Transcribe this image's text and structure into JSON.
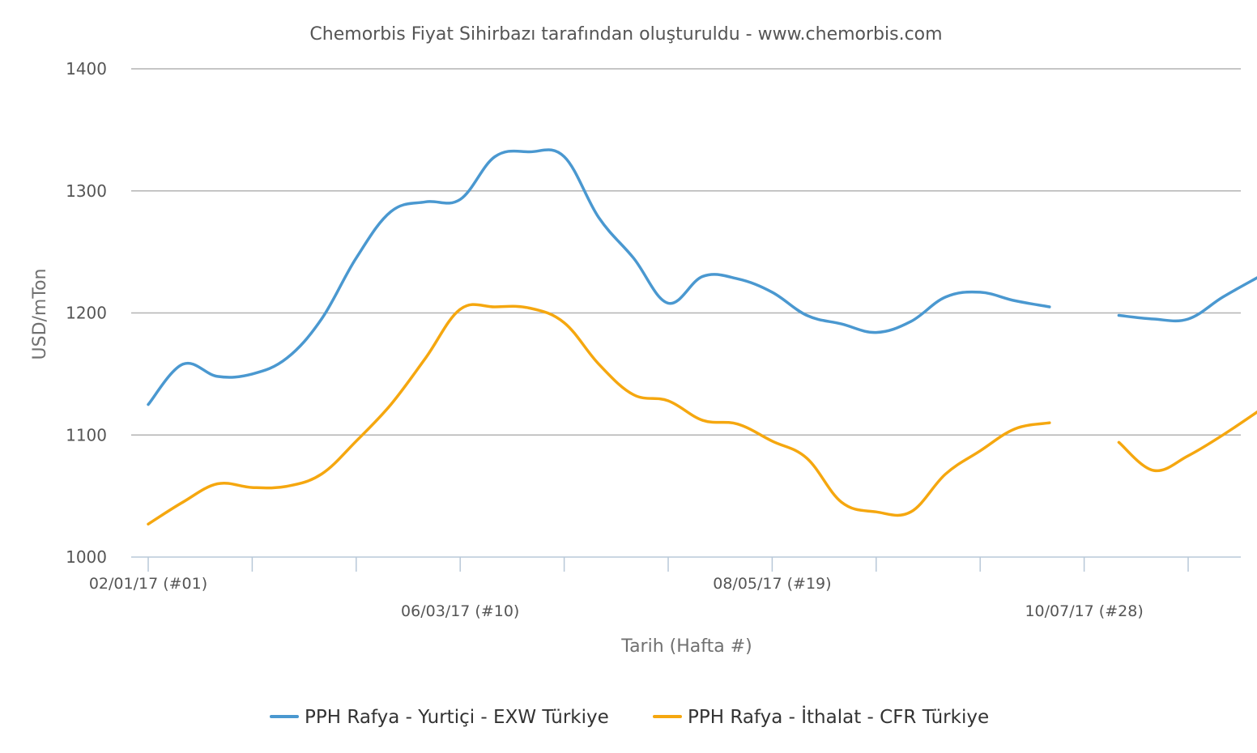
{
  "chart_data": {
    "type": "line",
    "title": "Chemorbis Fiyat Sihirbazı tarafından oluşturuldu - www.chemorbis.com",
    "xlabel": "Tarih (Hafta #)",
    "ylabel": "USD/mTon",
    "ylim": [
      1000,
      1400
    ],
    "yticks": [
      "1000",
      "1100",
      "1200",
      "1300",
      "1400"
    ],
    "week_range": [
      1,
      31
    ],
    "x_tick_labels": [
      {
        "week": 1,
        "label": "02/01/17 (#01)",
        "row": 1
      },
      {
        "week": 10,
        "label": "06/03/17 (#10)",
        "row": 2
      },
      {
        "week": 19,
        "label": "08/05/17 (#19)",
        "row": 1
      },
      {
        "week": 28,
        "label": "10/07/17 (#28)",
        "row": 2
      }
    ],
    "x_tick_marks": [
      1,
      4,
      7,
      10,
      13,
      16,
      19,
      22,
      25,
      28,
      31
    ],
    "grid": true,
    "legend_position": "bottom",
    "series": [
      {
        "name": "PPH Rafya - Yurtiçi - EXW Türkiye",
        "color": "#4a98d0",
        "points": [
          [
            1,
            1125
          ],
          [
            2,
            1158
          ],
          [
            3,
            1148
          ],
          [
            4,
            1150
          ],
          [
            5,
            1163
          ],
          [
            6,
            1195
          ],
          [
            7,
            1245
          ],
          [
            8,
            1283
          ],
          [
            9,
            1291
          ],
          [
            10,
            1293
          ],
          [
            11,
            1328
          ],
          [
            12,
            1332
          ],
          [
            13,
            1328
          ],
          [
            14,
            1278
          ],
          [
            15,
            1245
          ],
          [
            16,
            1208
          ],
          [
            17,
            1230
          ],
          [
            18,
            1228
          ],
          [
            19,
            1217
          ],
          [
            20,
            1198
          ],
          [
            21,
            1191
          ],
          [
            22,
            1184
          ],
          [
            23,
            1193
          ],
          [
            24,
            1213
          ],
          [
            25,
            1217
          ],
          [
            26,
            1210
          ],
          [
            27,
            1205
          ],
          null,
          [
            29,
            1198
          ],
          [
            30,
            1195
          ],
          [
            31,
            1195
          ],
          [
            32,
            1213
          ],
          [
            33,
            1229
          ]
        ]
      },
      {
        "name": "PPH Rafya - İthalat - CFR Türkiye",
        "color": "#f5a70f",
        "points": [
          [
            1,
            1027
          ],
          [
            2,
            1045
          ],
          [
            3,
            1060
          ],
          [
            4,
            1057
          ],
          [
            5,
            1058
          ],
          [
            6,
            1068
          ],
          [
            7,
            1095
          ],
          [
            8,
            1125
          ],
          [
            9,
            1163
          ],
          [
            10,
            1203
          ],
          [
            11,
            1205
          ],
          [
            12,
            1204
          ],
          [
            13,
            1192
          ],
          [
            14,
            1158
          ],
          [
            15,
            1133
          ],
          [
            16,
            1128
          ],
          [
            17,
            1112
          ],
          [
            18,
            1109
          ],
          [
            19,
            1095
          ],
          [
            20,
            1081
          ],
          [
            21,
            1045
          ],
          [
            22,
            1037
          ],
          [
            23,
            1037
          ],
          [
            24,
            1068
          ],
          [
            25,
            1087
          ],
          [
            26,
            1105
          ],
          [
            27,
            1110
          ],
          null,
          [
            29,
            1094
          ],
          [
            30,
            1071
          ],
          [
            31,
            1083
          ],
          [
            32,
            1100
          ],
          [
            33,
            1119
          ]
        ]
      }
    ]
  }
}
